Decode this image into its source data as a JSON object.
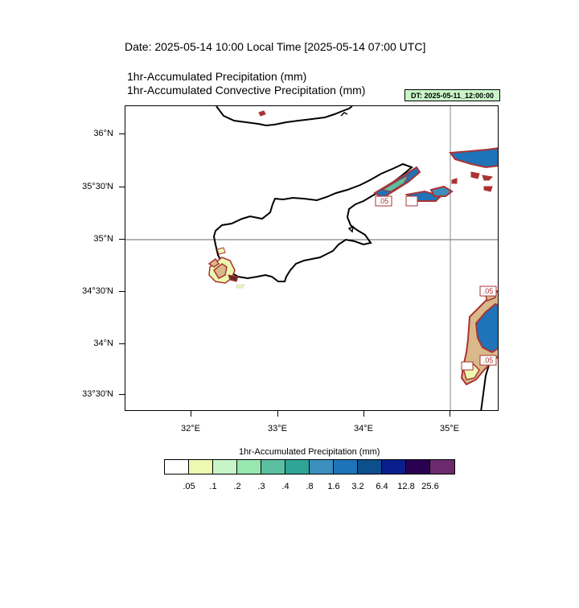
{
  "header": {
    "date_line": "Date: 2025-05-14  10:00 Local Time [2025-05-14  07:00 UTC]",
    "title_1": "1hr-Accumulated Precipitation   (mm)",
    "title_2": "1hr-Accumulated Convective Precipitation   (mm)",
    "dt_label": "DT: 2025-05-11_12:00:00"
  },
  "map": {
    "lat_labels": [
      "36°N",
      "35°30'N",
      "35°N",
      "34°30'N",
      "34°N",
      "33°30'N"
    ],
    "lon_labels": [
      "32°E",
      "33°E",
      "34°E",
      "35°E"
    ],
    "gridline_lat": "35°N",
    "gridline_lon": "35°E",
    "contour_labels": [
      ".05",
      ".05",
      ".05",
      ".05"
    ]
  },
  "colorbar": {
    "title": "1hr-Accumulated Precipitation  (mm)",
    "labels": [
      ".05",
      ".1",
      ".2",
      ".3",
      ".4",
      ".8",
      "1.6",
      "3.2",
      "6.4",
      "12.8",
      "25.6"
    ],
    "colors": [
      "#ffffff",
      "#edf8b1",
      "#c7f5c8",
      "#98e6b0",
      "#5cc0a0",
      "#2fa598",
      "#3a8fbd",
      "#1f73b8",
      "#0c4f8c",
      "#0a1f8c",
      "#2a0050",
      "#6b2a6b"
    ]
  }
}
